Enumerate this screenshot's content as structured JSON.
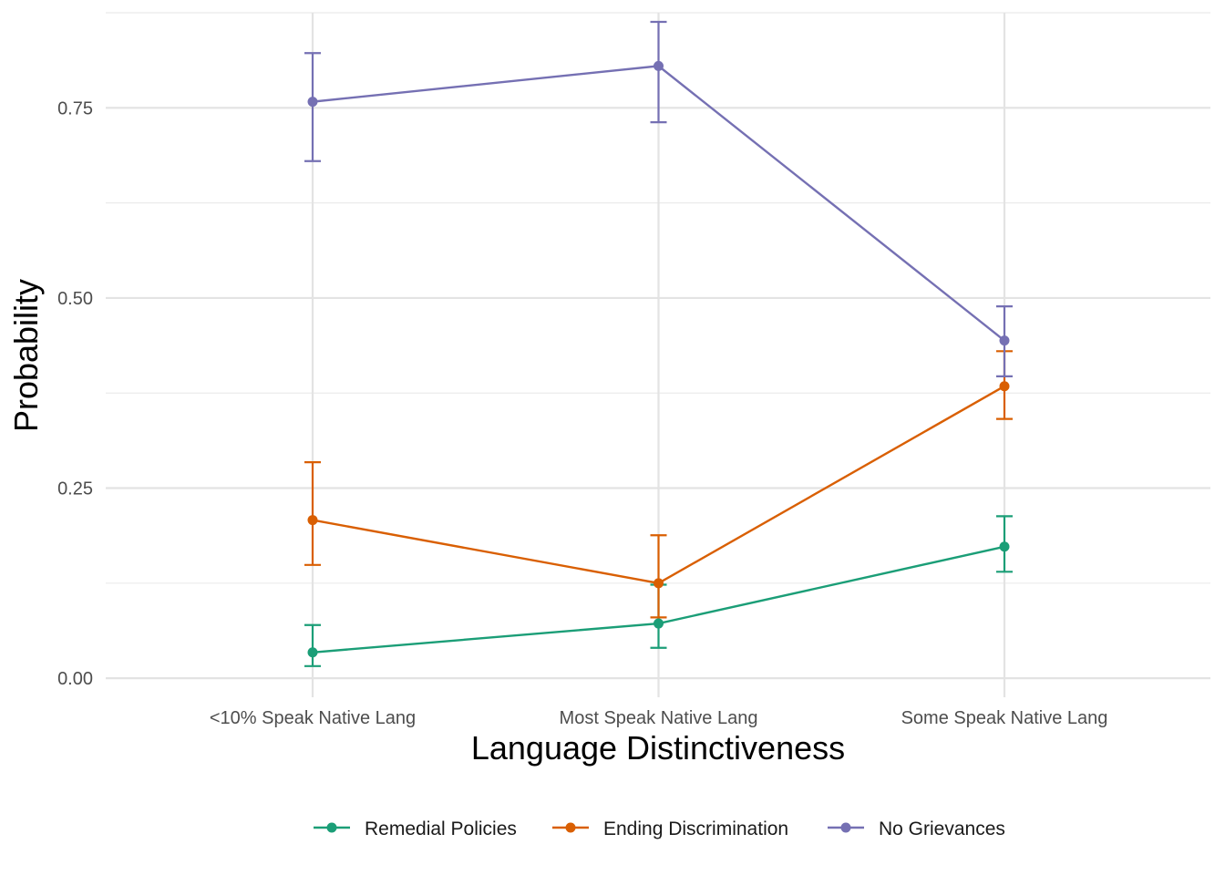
{
  "chart_data": {
    "type": "line",
    "title": "",
    "xlabel": "Language Distinctiveness",
    "ylabel": "Probability",
    "categories": [
      "<10% Speak Native Lang",
      "Most Speak Native Lang",
      "Some Speak Native Lang"
    ],
    "ylim": [
      -0.025,
      0.875
    ],
    "yticks": [
      0.0,
      0.25,
      0.5,
      0.75
    ],
    "ytick_labels": [
      "0.00",
      "0.25",
      "0.50",
      "0.75"
    ],
    "grid": true,
    "legend_position": "bottom",
    "series": [
      {
        "name": "Remedial Policies",
        "color": "#1b9e77",
        "values": [
          0.034,
          0.072,
          0.173
        ],
        "lower": [
          0.016,
          0.04,
          0.14
        ],
        "upper": [
          0.07,
          0.123,
          0.213
        ]
      },
      {
        "name": "Ending Discrimination",
        "color": "#d95f02",
        "values": [
          0.208,
          0.125,
          0.384
        ],
        "lower": [
          0.149,
          0.08,
          0.341
        ],
        "upper": [
          0.284,
          0.188,
          0.43
        ]
      },
      {
        "name": "No Grievances",
        "color": "#7570b3",
        "values": [
          0.758,
          0.805,
          0.444
        ],
        "lower": [
          0.68,
          0.731,
          0.397
        ],
        "upper": [
          0.822,
          0.863,
          0.489
        ]
      }
    ]
  }
}
